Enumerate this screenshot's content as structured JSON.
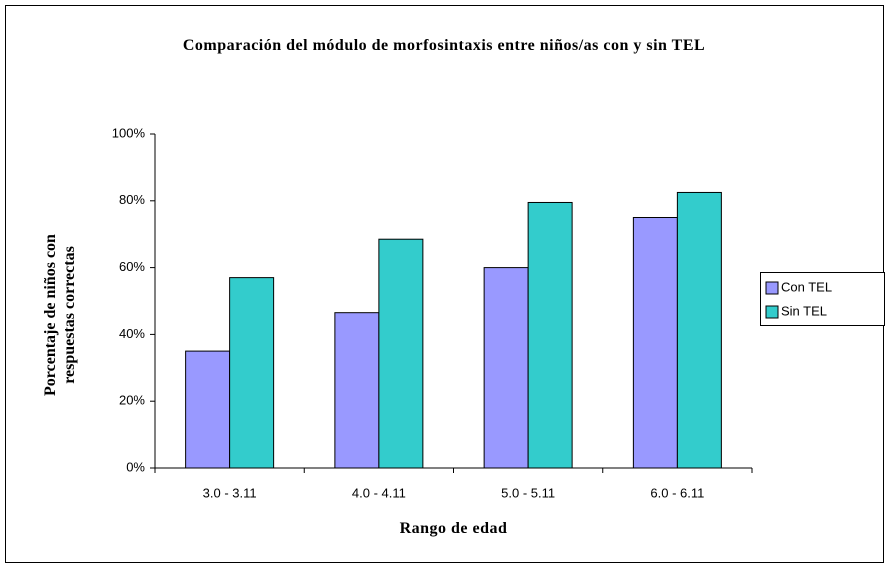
{
  "chart_data": {
    "type": "bar",
    "title": "Comparación del módulo de morfosintaxis entre niños/as con y sin TEL",
    "xlabel": "Rango de edad",
    "ylabel": "Porcentaje de niños con respuestas correctas",
    "categories": [
      "3.0 - 3.11",
      "4.0 - 4.11",
      "5.0 - 5.11",
      "6.0 - 6.11"
    ],
    "series": [
      {
        "name": "Con TEL",
        "color": "#9999ff",
        "values": [
          35,
          46.5,
          60,
          75
        ]
      },
      {
        "name": "Sin TEL",
        "color": "#33cccc",
        "values": [
          57,
          68.5,
          79.5,
          82.5
        ]
      }
    ],
    "ylim": [
      0,
      100
    ],
    "yticks": [
      {
        "value": 0,
        "label": "0%"
      },
      {
        "value": 20,
        "label": "20%"
      },
      {
        "value": 40,
        "label": "40%"
      },
      {
        "value": 60,
        "label": "60%"
      },
      {
        "value": 80,
        "label": "80%"
      },
      {
        "value": 100,
        "label": "100%"
      }
    ],
    "grid": false,
    "legend": "right"
  }
}
